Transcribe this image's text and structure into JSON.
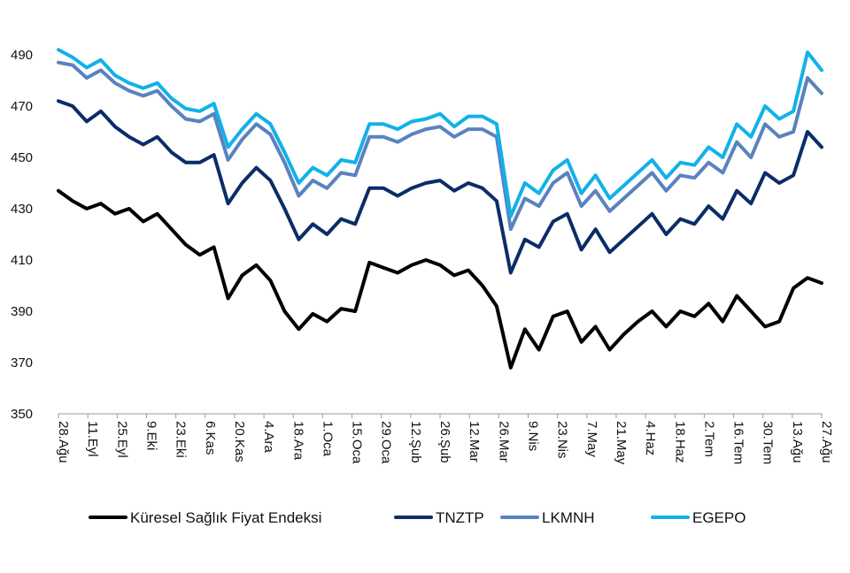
{
  "chart_data": {
    "type": "line",
    "title": "",
    "xlabel": "",
    "ylabel": "",
    "ylim": [
      350,
      500
    ],
    "yticks": [
      350,
      370,
      390,
      410,
      430,
      450,
      470,
      490
    ],
    "xticks": [
      "28.Ağu",
      "11.Eyl",
      "25.Eyl",
      "9.Eki",
      "23.Eki",
      "6.Kas",
      "20.Kas",
      "4.Ara",
      "18.Ara",
      "1.Oca",
      "15.Oca",
      "29.Oca",
      "12.Şub",
      "26.Şub",
      "12.Mar",
      "26.Mar",
      "9.Nis",
      "23.Nis",
      "7.May",
      "21.May",
      "4.Haz",
      "18.Haz",
      "2.Tem",
      "16.Tem",
      "30.Tem",
      "13.Ağu",
      "27.Ağu"
    ],
    "grid": false,
    "legend": "bottom",
    "series": [
      {
        "name": "Küresel Sağlık Fiyat Endeksi",
        "color": "#000000",
        "values": [
          437,
          433,
          430,
          432,
          428,
          430,
          425,
          428,
          422,
          416,
          412,
          415,
          395,
          404,
          408,
          402,
          390,
          383,
          389,
          386,
          391,
          390,
          409,
          407,
          405,
          408,
          410,
          408,
          404,
          406,
          400,
          392,
          368,
          383,
          375,
          388,
          390,
          378,
          384,
          375,
          381,
          386,
          390,
          384,
          390,
          388,
          393,
          386,
          396,
          390,
          384,
          386,
          399,
          403,
          401
        ]
      },
      {
        "name": "TNZTP",
        "color": "#0b2d67",
        "values": [
          472,
          470,
          464,
          468,
          462,
          458,
          455,
          458,
          452,
          448,
          448,
          451,
          432,
          440,
          446,
          441,
          430,
          418,
          424,
          420,
          426,
          424,
          438,
          438,
          435,
          438,
          440,
          441,
          437,
          440,
          438,
          433,
          405,
          418,
          415,
          425,
          428,
          414,
          422,
          413,
          418,
          423,
          428,
          420,
          426,
          424,
          431,
          426,
          437,
          432,
          444,
          440,
          443,
          460,
          454
        ]
      },
      {
        "name": "LKMNH",
        "color": "#5a82bf",
        "values": [
          487,
          486,
          481,
          484,
          479,
          476,
          474,
          476,
          470,
          465,
          464,
          467,
          449,
          457,
          463,
          459,
          448,
          435,
          441,
          438,
          444,
          443,
          458,
          458,
          456,
          459,
          461,
          462,
          458,
          461,
          461,
          458,
          422,
          434,
          431,
          440,
          444,
          431,
          437,
          429,
          434,
          439,
          444,
          437,
          443,
          442,
          448,
          444,
          456,
          450,
          463,
          458,
          460,
          481,
          475
        ]
      },
      {
        "name": "EGEPO",
        "color": "#12b1e8",
        "values": [
          492,
          489,
          485,
          488,
          482,
          479,
          477,
          479,
          473,
          469,
          468,
          471,
          454,
          461,
          467,
          463,
          452,
          440,
          446,
          443,
          449,
          448,
          463,
          463,
          461,
          464,
          465,
          467,
          462,
          466,
          466,
          463,
          427,
          440,
          436,
          445,
          449,
          436,
          443,
          434,
          439,
          444,
          449,
          442,
          448,
          447,
          454,
          450,
          463,
          458,
          470,
          465,
          468,
          491,
          484
        ]
      }
    ]
  }
}
